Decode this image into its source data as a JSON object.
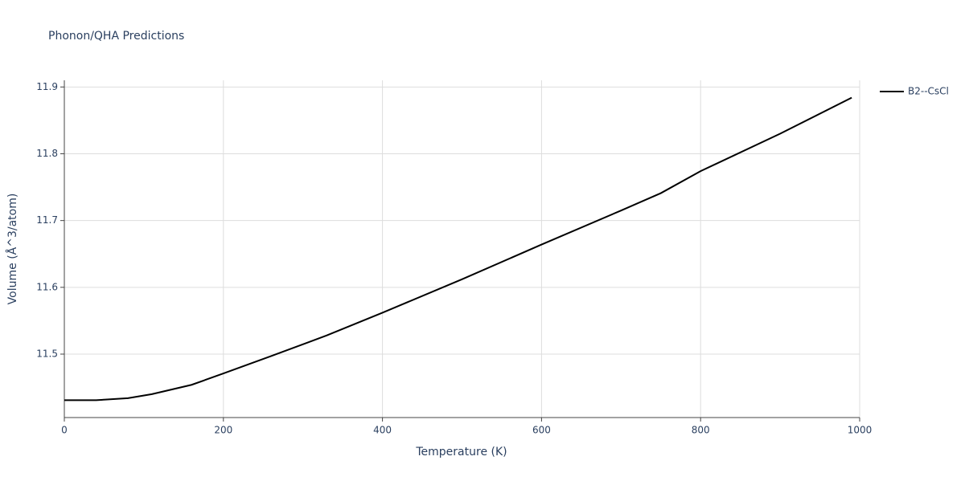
{
  "chart_data": {
    "type": "line",
    "title": "Phonon/QHA Predictions",
    "x_label": "Temperature (K)",
    "y_label": "Volume (Å^3/atom)",
    "x": [
      0,
      40,
      80,
      110,
      160,
      200,
      260,
      330,
      400,
      500,
      600,
      700,
      750,
      800,
      900,
      990
    ],
    "series": [
      {
        "name": "B2--CsCl",
        "color": "#000000",
        "values": [
          11.431,
          11.431,
          11.434,
          11.44,
          11.454,
          11.471,
          11.497,
          11.528,
          11.562,
          11.612,
          11.664,
          11.715,
          11.741,
          11.774,
          11.83,
          11.884
        ]
      }
    ],
    "xlim": [
      0,
      1000
    ],
    "xticks": [
      0,
      200,
      400,
      600,
      800,
      1000
    ],
    "ylim": [
      11.405,
      11.91
    ],
    "yticks": [
      11.5,
      11.6,
      11.7,
      11.8,
      11.9
    ],
    "grid": true,
    "legend": "right"
  }
}
